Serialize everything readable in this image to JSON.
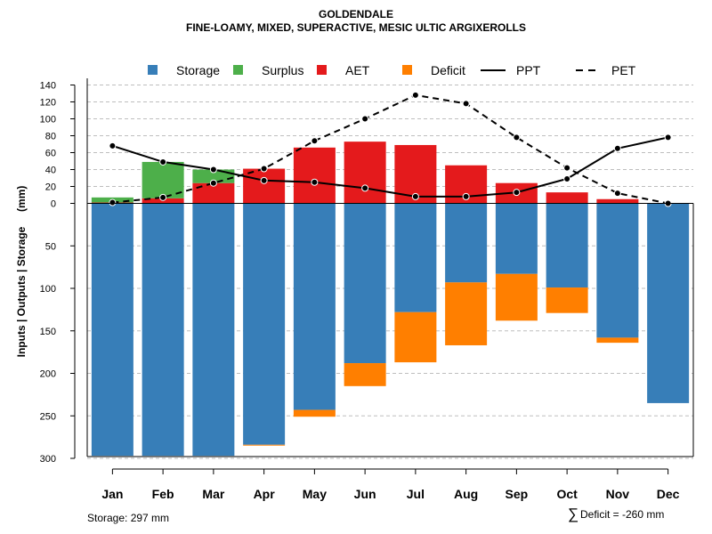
{
  "chart_data": {
    "type": "bar",
    "title": "GOLDENDALE",
    "subtitle": "FINE-LOAMY, MIXED, SUPERACTIVE, MESIC ULTIC ARGIXEROLLS",
    "ylabel": "Inputs | Outputs | Storage     (mm)",
    "categories": [
      "Jan",
      "Feb",
      "Mar",
      "Apr",
      "May",
      "Jun",
      "Jul",
      "Aug",
      "Sep",
      "Oct",
      "Nov",
      "Dec"
    ],
    "upper_ticks": [
      0,
      20,
      40,
      60,
      80,
      100,
      120,
      140
    ],
    "upper_tick_labels": [
      "0",
      "20",
      "40",
      "60",
      "80",
      "100",
      "120",
      "140"
    ],
    "lower_ticks": [
      50,
      100,
      150,
      200,
      250,
      300
    ],
    "lower_tick_labels": [
      "50",
      "100",
      "150",
      "200",
      "250",
      "300"
    ],
    "upper_ylim": [
      0,
      140
    ],
    "lower_ylim": [
      0,
      300
    ],
    "legend": [
      {
        "label": "Storage",
        "kind": "box",
        "color": "#377EB8"
      },
      {
        "label": "Surplus",
        "kind": "box",
        "color": "#4DAF4A"
      },
      {
        "label": "AET",
        "kind": "box",
        "color": "#E41A1C"
      },
      {
        "label": "Deficit",
        "kind": "box",
        "color": "#FF7F00"
      },
      {
        "label": "PPT",
        "kind": "solid",
        "color": "#000000"
      },
      {
        "label": "PET",
        "kind": "dashed",
        "color": "#000000"
      }
    ],
    "series": [
      {
        "name": "AET",
        "values": [
          1,
          6,
          24,
          41,
          66,
          73,
          69,
          45,
          24,
          13,
          5,
          0
        ]
      },
      {
        "name": "Surplus",
        "values": [
          6,
          43,
          16,
          0,
          0,
          0,
          0,
          0,
          0,
          0,
          0,
          0
        ]
      },
      {
        "name": "Storage",
        "values": [
          297,
          297,
          297,
          284,
          243,
          188,
          128,
          93,
          83,
          99,
          158,
          235
        ]
      },
      {
        "name": "Deficit",
        "values": [
          0,
          0,
          0,
          1,
          8,
          27,
          59,
          74,
          55,
          30,
          6,
          0
        ]
      },
      {
        "name": "PPT",
        "values": [
          68,
          49,
          40,
          27,
          25,
          18,
          8,
          8,
          13,
          29,
          65,
          78
        ]
      },
      {
        "name": "PET",
        "values": [
          1,
          7,
          24,
          41,
          74,
          100,
          128,
          118,
          78,
          42,
          12,
          0
        ]
      }
    ],
    "colors": {
      "storage": "#377EB8",
      "surplus": "#4DAF4A",
      "aet": "#E41A1C",
      "deficit": "#FF7F00",
      "line": "#000000",
      "grid": "#BEBEBE"
    }
  },
  "footer": {
    "storage_label": "Storage: 297 mm",
    "sum_symbol": "∑",
    "deficit_label": "Deficit = -260 mm"
  }
}
